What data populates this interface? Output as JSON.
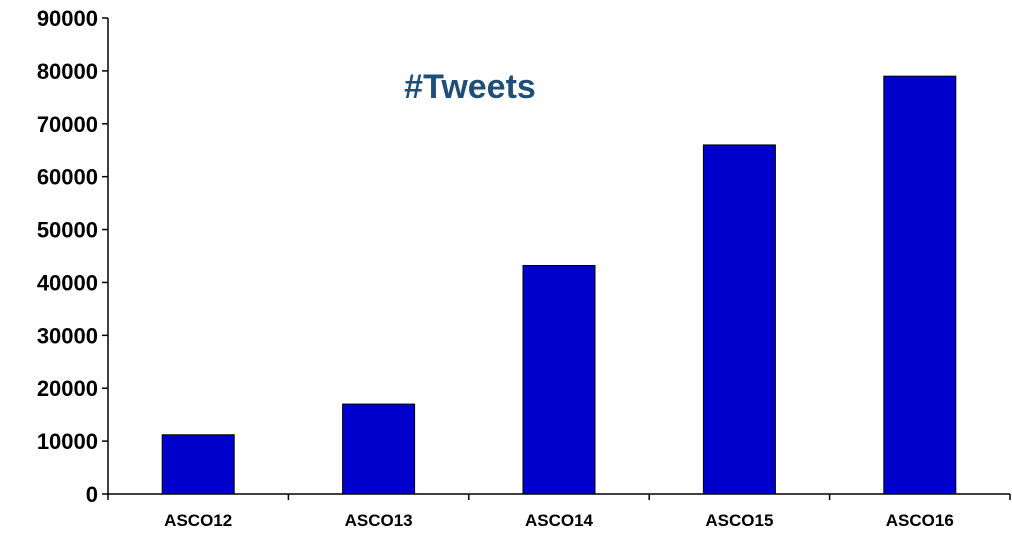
{
  "chart_data": {
    "type": "bar",
    "title": "#Tweets",
    "categories": [
      "ASCO12",
      "ASCO13",
      "ASCO14",
      "ASCO15",
      "ASCO16"
    ],
    "values": [
      11200,
      17000,
      43200,
      66000,
      79000
    ],
    "ylim": [
      0,
      90000
    ],
    "yticks": [
      "0",
      "10000",
      "20000",
      "30000",
      "40000",
      "50000",
      "60000",
      "70000",
      "80000",
      "90000"
    ],
    "xlabel": "",
    "ylabel": "",
    "grid": false,
    "legend": "none",
    "bar_color": "#0000CC",
    "title_color": "#1F4E79"
  }
}
